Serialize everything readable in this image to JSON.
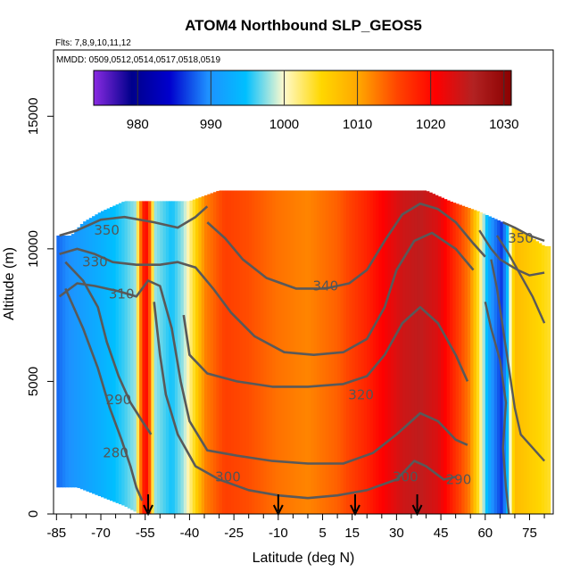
{
  "chart_data": {
    "type": "heatmap",
    "title": "ATOM4 Northbound SLP_GEOS5",
    "subtitle_flights": "Flts: 7,8,9,10,11,12",
    "subtitle_dates": "MMDD: 0509,0512,0514,0517,0518,0519",
    "xlabel": "Latitude (deg N)",
    "ylabel": "Altitude (m)",
    "xlim": [
      -86,
      83
    ],
    "ylim": [
      0,
      17500
    ],
    "x_ticks": [
      -85,
      -70,
      -55,
      -40,
      -25,
      -10,
      5,
      15,
      30,
      45,
      60,
      75
    ],
    "y_ticks": [
      0,
      5000,
      10000,
      15000
    ],
    "colorbar": {
      "range": [
        974,
        1031
      ],
      "ticks": [
        980,
        990,
        1000,
        1010,
        1020,
        1030
      ],
      "colors": [
        "#8a2be2",
        "#00008b",
        "#0000cd",
        "#1e90ff",
        "#00bfff",
        "#fffacd",
        "#ffd700",
        "#ffa500",
        "#ff4500",
        "#ff0000",
        "#b22222",
        "#8b0000"
      ]
    },
    "slp_by_latitude": [
      {
        "lat": -85,
        "slp": 988
      },
      {
        "lat": -80,
        "slp": 990
      },
      {
        "lat": -70,
        "slp": 993
      },
      {
        "lat": -62,
        "slp": 996
      },
      {
        "lat": -58,
        "slp": 998
      },
      {
        "lat": -56,
        "slp": 1018
      },
      {
        "lat": -54,
        "slp": 1020
      },
      {
        "lat": -52,
        "slp": 998
      },
      {
        "lat": -46,
        "slp": 995
      },
      {
        "lat": -42,
        "slp": 998
      },
      {
        "lat": -38,
        "slp": 1005
      },
      {
        "lat": -35,
        "slp": 1012
      },
      {
        "lat": -28,
        "slp": 1016
      },
      {
        "lat": -20,
        "slp": 1015
      },
      {
        "lat": -10,
        "slp": 1013
      },
      {
        "lat": 0,
        "slp": 1012
      },
      {
        "lat": 10,
        "slp": 1014
      },
      {
        "lat": 20,
        "slp": 1018
      },
      {
        "lat": 26,
        "slp": 1021
      },
      {
        "lat": 32,
        "slp": 1024
      },
      {
        "lat": 38,
        "slp": 1025
      },
      {
        "lat": 44,
        "slp": 1023
      },
      {
        "lat": 50,
        "slp": 1017
      },
      {
        "lat": 55,
        "slp": 1012
      },
      {
        "lat": 58,
        "slp": 1003
      },
      {
        "lat": 62,
        "slp": 990
      },
      {
        "lat": 66,
        "slp": 986
      },
      {
        "lat": 70,
        "slp": 1008
      },
      {
        "lat": 76,
        "slp": 1006
      },
      {
        "lat": 82,
        "slp": 1004
      }
    ],
    "data_top_altitude": [
      {
        "lat": -86,
        "alt": 10500
      },
      {
        "lat": -80,
        "alt": 10500
      },
      {
        "lat": -76,
        "alt": 11000
      },
      {
        "lat": -70,
        "alt": 11400
      },
      {
        "lat": -62,
        "alt": 11800
      },
      {
        "lat": -40,
        "alt": 11800
      },
      {
        "lat": -30,
        "alt": 12200
      },
      {
        "lat": 40,
        "alt": 12200
      },
      {
        "lat": 48,
        "alt": 11800
      },
      {
        "lat": 58,
        "alt": 11400
      },
      {
        "lat": 66,
        "alt": 11000
      },
      {
        "lat": 72,
        "alt": 10700
      },
      {
        "lat": 80,
        "alt": 10100
      }
    ],
    "data_bottom_altitude": [
      {
        "lat": -86,
        "alt": 1000
      },
      {
        "lat": -78,
        "alt": 1000
      },
      {
        "lat": -62,
        "alt": 300
      },
      {
        "lat": -57,
        "alt": 0
      },
      {
        "lat": 80,
        "alt": 0
      }
    ],
    "contour_lines": [
      {
        "level": "280",
        "points": [
          [
            -82,
            8500
          ],
          [
            -76,
            7000
          ],
          [
            -71,
            5500
          ],
          [
            -67,
            4000
          ],
          [
            -63,
            2800
          ],
          [
            -60,
            1800
          ],
          [
            -58,
            1000
          ],
          [
            -56,
            500
          ]
        ]
      },
      {
        "level": "290",
        "points": [
          [
            -82,
            9500
          ],
          [
            -76,
            8800
          ],
          [
            -71,
            7800
          ],
          [
            -68,
            6500
          ],
          [
            -64,
            5200
          ],
          [
            -60,
            4200
          ],
          [
            -56,
            3500
          ],
          [
            -53,
            3000
          ]
        ]
      },
      {
        "level": "300",
        "points": [
          [
            -52,
            8000
          ],
          [
            -50,
            6000
          ],
          [
            -48,
            4500
          ],
          [
            -44,
            3000
          ],
          [
            -38,
            1800
          ],
          [
            -30,
            1300
          ],
          [
            -20,
            900
          ],
          [
            -10,
            700
          ],
          [
            0,
            600
          ],
          [
            10,
            700
          ],
          [
            20,
            900
          ],
          [
            30,
            1300
          ],
          [
            36,
            2000
          ],
          [
            40,
            1800
          ],
          [
            46,
            1300
          ],
          [
            50,
            1400
          ]
        ]
      },
      {
        "level": "310",
        "points": [
          [
            -84,
            8200
          ],
          [
            -78,
            8700
          ],
          [
            -72,
            8600
          ],
          [
            -64,
            8400
          ],
          [
            -58,
            8200
          ],
          [
            -54,
            8800
          ],
          [
            -50,
            8600
          ],
          [
            -46,
            7000
          ],
          [
            -43,
            5000
          ],
          [
            -40,
            3500
          ],
          [
            -34,
            2400
          ],
          [
            -24,
            2200
          ],
          [
            -12,
            2000
          ],
          [
            0,
            1900
          ],
          [
            12,
            1900
          ],
          [
            22,
            2300
          ],
          [
            30,
            3000
          ],
          [
            38,
            3800
          ],
          [
            44,
            3500
          ],
          [
            50,
            2800
          ],
          [
            54,
            2600
          ]
        ]
      },
      {
        "level": "320",
        "points": [
          [
            -42,
            7500
          ],
          [
            -40,
            6000
          ],
          [
            -34,
            5300
          ],
          [
            -24,
            5000
          ],
          [
            -12,
            4800
          ],
          [
            0,
            4800
          ],
          [
            12,
            4900
          ],
          [
            20,
            5200
          ],
          [
            26,
            6000
          ],
          [
            32,
            7200
          ],
          [
            38,
            7800
          ],
          [
            44,
            7200
          ],
          [
            50,
            6000
          ],
          [
            54,
            5000
          ]
        ]
      },
      {
        "level": "330",
        "points": [
          [
            -84,
            9800
          ],
          [
            -78,
            10000
          ],
          [
            -72,
            9800
          ],
          [
            -66,
            9500
          ],
          [
            -58,
            9400
          ],
          [
            -50,
            9400
          ],
          [
            -44,
            9500
          ],
          [
            -38,
            9300
          ],
          [
            -32,
            8500
          ],
          [
            -26,
            7600
          ],
          [
            -18,
            6700
          ],
          [
            -8,
            6100
          ],
          [
            2,
            6000
          ],
          [
            12,
            6100
          ],
          [
            20,
            6600
          ],
          [
            26,
            7800
          ],
          [
            30,
            9200
          ],
          [
            36,
            10300
          ],
          [
            42,
            10600
          ],
          [
            50,
            10000
          ],
          [
            56,
            9200
          ]
        ]
      },
      {
        "level": "340",
        "points": [
          [
            -34,
            11000
          ],
          [
            -28,
            10400
          ],
          [
            -22,
            9600
          ],
          [
            -14,
            8900
          ],
          [
            -4,
            8500
          ],
          [
            6,
            8500
          ],
          [
            14,
            8700
          ],
          [
            20,
            9200
          ],
          [
            26,
            10300
          ],
          [
            32,
            11300
          ],
          [
            38,
            11700
          ],
          [
            44,
            11500
          ],
          [
            50,
            11000
          ],
          [
            56,
            10200
          ],
          [
            60,
            9700
          ]
        ]
      },
      {
        "level": "350",
        "points": [
          [
            -84,
            10500
          ],
          [
            -78,
            10700
          ],
          [
            -70,
            11100
          ],
          [
            -62,
            11200
          ],
          [
            -52,
            11000
          ],
          [
            -44,
            10800
          ],
          [
            -38,
            11200
          ],
          [
            -34,
            11600
          ]
        ]
      }
    ],
    "contour_labels": [
      {
        "text": "350",
        "lat": -68,
        "alt": 10700
      },
      {
        "text": "330",
        "lat": -72,
        "alt": 9500
      },
      {
        "text": "310",
        "lat": -63,
        "alt": 8300
      },
      {
        "text": "290",
        "lat": -64,
        "alt": 4300
      },
      {
        "text": "280",
        "lat": -65,
        "alt": 2300
      },
      {
        "text": "340",
        "lat": 6,
        "alt": 8600
      },
      {
        "text": "320",
        "lat": 18,
        "alt": 4500
      },
      {
        "text": "300",
        "lat": -27,
        "alt": 1400
      },
      {
        "text": "300",
        "lat": 33,
        "alt": 1400
      },
      {
        "text": "290",
        "lat": 51,
        "alt": 1300
      },
      {
        "text": "350",
        "lat": 72,
        "alt": 10400
      }
    ],
    "side_contours_north": [
      [
        [
          58,
          10700
        ],
        [
          62,
          10000
        ],
        [
          65,
          9600
        ],
        [
          68,
          9400
        ],
        [
          71,
          9200
        ],
        [
          75,
          9000
        ],
        [
          80,
          9100
        ]
      ],
      [
        [
          60,
          8000
        ],
        [
          62,
          7000
        ],
        [
          65,
          5800
        ],
        [
          67,
          4200
        ],
        [
          66,
          2500
        ],
        [
          67,
          1000
        ],
        [
          68,
          0
        ]
      ],
      [
        [
          62,
          9600
        ],
        [
          64,
          8500
        ],
        [
          66,
          7000
        ],
        [
          68,
          5500
        ],
        [
          70,
          4000
        ],
        [
          72,
          3000
        ],
        [
          76,
          2500
        ],
        [
          80,
          2000
        ]
      ],
      [
        [
          64,
          10500
        ],
        [
          68,
          9800
        ],
        [
          72,
          9000
        ],
        [
          76,
          8200
        ],
        [
          80,
          7200
        ]
      ],
      [
        [
          66,
          11000
        ],
        [
          70,
          10800
        ],
        [
          75,
          10500
        ],
        [
          80,
          10300
        ]
      ]
    ],
    "flight_markers_lat": [
      -54,
      -10,
      16,
      37
    ]
  }
}
